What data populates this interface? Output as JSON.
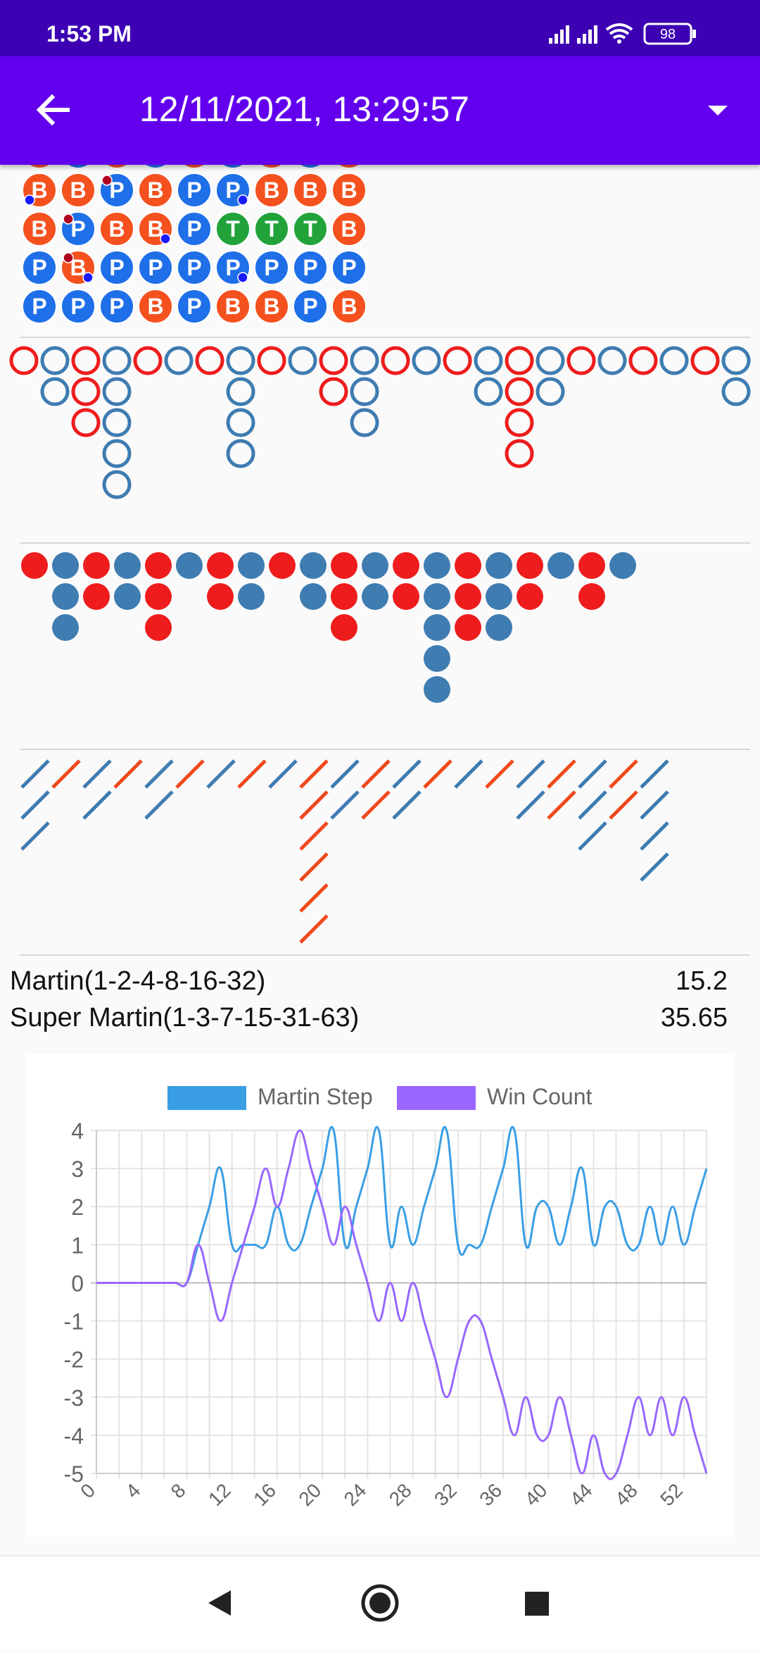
{
  "status_bar": {
    "time": "1:53 PM",
    "battery": "98",
    "icons": [
      "signal-icon",
      "signal-icon",
      "wifi-icon",
      "battery-icon"
    ]
  },
  "app_bar": {
    "title": "12/11/2021, 13:29:57",
    "back_icon": "arrow-back-icon",
    "menu_icon": "dropdown-arrow-icon"
  },
  "colors": {
    "app_bar": "#6200ee",
    "status_bar": "#3d00b3",
    "banker": "#f4511e",
    "player": "#1e6fe8",
    "tie": "#21a33a",
    "blue_ring": "#3e7cb1",
    "red_ring": "#ee1c1c",
    "martin_step": "#3a9ee4",
    "win_count": "#9966ff"
  },
  "bead_road": {
    "rows": [
      [
        "B",
        "B",
        "P",
        "B",
        "P",
        "P",
        "B",
        "B",
        "B"
      ],
      [
        "B",
        "P",
        "B",
        "B",
        "P",
        "T",
        "T",
        "T",
        "B"
      ],
      [
        "P",
        "B",
        "P",
        "P",
        "P",
        "P",
        "P",
        "P",
        "P"
      ],
      [
        "P",
        "P",
        "P",
        "B",
        "P",
        "B",
        "B",
        "P",
        "B"
      ]
    ],
    "markers": [
      {
        "row": 0,
        "col": 0,
        "pos": "bl",
        "color": "blue"
      },
      {
        "row": 0,
        "col": 2,
        "pos": "tl",
        "color": "red"
      },
      {
        "row": 0,
        "col": 5,
        "pos": "br",
        "color": "blue"
      },
      {
        "row": 1,
        "col": 1,
        "pos": "tl",
        "color": "red"
      },
      {
        "row": 1,
        "col": 3,
        "pos": "br",
        "color": "blue"
      },
      {
        "row": 2,
        "col": 1,
        "pos": "tl",
        "color": "red"
      },
      {
        "row": 2,
        "col": 1,
        "pos": "br",
        "color": "blue"
      },
      {
        "row": 2,
        "col": 5,
        "pos": "br",
        "color": "blue"
      }
    ]
  },
  "big_eye_road": [
    {
      "color": "r",
      "len": 1
    },
    {
      "color": "b",
      "len": 2
    },
    {
      "color": "r",
      "len": 3
    },
    {
      "color": "b",
      "len": 5
    },
    {
      "color": "r",
      "len": 1
    },
    {
      "color": "b",
      "len": 1
    },
    {
      "color": "r",
      "len": 1
    },
    {
      "color": "b",
      "len": 4
    },
    {
      "color": "r",
      "len": 1
    },
    {
      "color": "b",
      "len": 1
    },
    {
      "color": "r",
      "len": 2
    },
    {
      "color": "b",
      "len": 3
    },
    {
      "color": "r",
      "len": 1
    },
    {
      "color": "b",
      "len": 1
    },
    {
      "color": "r",
      "len": 1
    },
    {
      "color": "b",
      "len": 2
    },
    {
      "color": "r",
      "len": 4
    },
    {
      "color": "b",
      "len": 2
    },
    {
      "color": "r",
      "len": 1
    },
    {
      "color": "b",
      "len": 1
    },
    {
      "color": "r",
      "len": 1
    },
    {
      "color": "b",
      "len": 1
    },
    {
      "color": "r",
      "len": 1
    },
    {
      "color": "b",
      "len": 2
    }
  ],
  "small_road": [
    {
      "color": "r",
      "len": 1
    },
    {
      "color": "b",
      "len": 3
    },
    {
      "color": "r",
      "len": 2
    },
    {
      "color": "b",
      "len": 2
    },
    {
      "color": "r",
      "len": 3
    },
    {
      "color": "b",
      "len": 1
    },
    {
      "color": "r",
      "len": 2
    },
    {
      "color": "b",
      "len": 2
    },
    {
      "color": "r",
      "len": 1
    },
    {
      "color": "b",
      "len": 2
    },
    {
      "color": "r",
      "len": 3
    },
    {
      "color": "b",
      "len": 2
    },
    {
      "color": "r",
      "len": 2
    },
    {
      "color": "b",
      "len": 5
    },
    {
      "color": "r",
      "len": 3
    },
    {
      "color": "b",
      "len": 3
    },
    {
      "color": "r",
      "len": 2
    },
    {
      "color": "b",
      "len": 1
    },
    {
      "color": "r",
      "len": 2
    },
    {
      "color": "b",
      "len": 1
    }
  ],
  "cockroach_road": [
    {
      "color": "b",
      "len": 3
    },
    {
      "color": "r",
      "len": 1
    },
    {
      "color": "b",
      "len": 2
    },
    {
      "color": "r",
      "len": 1
    },
    {
      "color": "b",
      "len": 2
    },
    {
      "color": "r",
      "len": 1
    },
    {
      "color": "b",
      "len": 1
    },
    {
      "color": "r",
      "len": 1
    },
    {
      "color": "b",
      "len": 1
    },
    {
      "color": "r",
      "len": 6
    },
    {
      "color": "b",
      "len": 2
    },
    {
      "color": "r",
      "len": 2
    },
    {
      "color": "b",
      "len": 2
    },
    {
      "color": "r",
      "len": 1
    },
    {
      "color": "b",
      "len": 1
    },
    {
      "color": "r",
      "len": 1
    },
    {
      "color": "b",
      "len": 2
    },
    {
      "color": "r",
      "len": 2
    },
    {
      "color": "b",
      "len": 3
    },
    {
      "color": "r",
      "len": 2
    },
    {
      "color": "b",
      "len": 4
    }
  ],
  "stats": [
    {
      "label": "Martin(1-2-4-8-16-32)",
      "value": "15.2"
    },
    {
      "label": "Super Martin(1-3-7-15-31-63)",
      "value": "35.65"
    }
  ],
  "chart_data": {
    "type": "line",
    "legend": [
      "Martin Step",
      "Win Count"
    ],
    "legend_position": "top",
    "x": [
      0,
      1,
      2,
      3,
      4,
      5,
      6,
      7,
      8,
      9,
      10,
      11,
      12,
      13,
      14,
      15,
      16,
      17,
      18,
      19,
      20,
      21,
      22,
      23,
      24,
      25,
      26,
      27,
      28,
      29,
      30,
      31,
      32,
      33,
      34,
      35,
      36,
      37,
      38,
      39,
      40,
      41,
      42,
      43,
      44,
      45,
      46,
      47,
      48,
      49,
      50,
      51,
      52,
      53,
      54
    ],
    "x_ticks": [
      "0",
      "4",
      "8",
      "12",
      "16",
      "20",
      "24",
      "28",
      "32",
      "36",
      "40",
      "44",
      "48",
      "52"
    ],
    "y_ticks": [
      "4",
      "3",
      "2",
      "1",
      "0",
      "-1",
      "-2",
      "-3",
      "-4",
      "-5"
    ],
    "ylim": [
      -5,
      4
    ],
    "grid": true,
    "series": [
      {
        "name": "Martin Step",
        "color": "#3a9ee4",
        "values": [
          0,
          0,
          0,
          0,
          0,
          0,
          0,
          0,
          0,
          1,
          2,
          3,
          1,
          1,
          1,
          1,
          2,
          1,
          1,
          2,
          3,
          4,
          1,
          2,
          3,
          4,
          1,
          2,
          1,
          2,
          3,
          4,
          1,
          1,
          1,
          2,
          3,
          4,
          1,
          2,
          2,
          1,
          2,
          3,
          1,
          2,
          2,
          1,
          1,
          2,
          1,
          2,
          1,
          2,
          3
        ]
      },
      {
        "name": "Win Count",
        "color": "#9966ff",
        "values": [
          0,
          0,
          0,
          0,
          0,
          0,
          0,
          0,
          0,
          1,
          0,
          -1,
          0,
          1,
          2,
          3,
          2,
          3,
          4,
          3,
          2,
          1,
          2,
          1,
          0,
          -1,
          0,
          -1,
          0,
          -1,
          -2,
          -3,
          -2,
          -1,
          -1,
          -2,
          -3,
          -4,
          -3,
          -4,
          -4,
          -3,
          -4,
          -5,
          -4,
          -5,
          -5,
          -4,
          -3,
          -4,
          -3,
          -4,
          -3,
          -4,
          -5
        ]
      }
    ]
  }
}
